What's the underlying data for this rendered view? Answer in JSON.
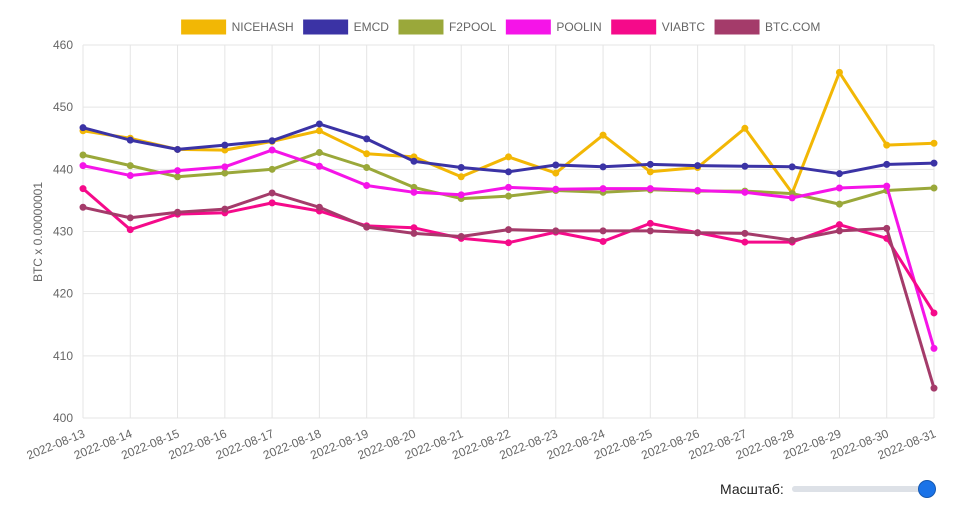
{
  "chart_data": {
    "type": "line",
    "ylabel": "BTC x 0.00000001",
    "xlabel": "",
    "ylim": [
      400,
      460
    ],
    "yticks": [
      400,
      410,
      420,
      430,
      440,
      450,
      460
    ],
    "grid": true,
    "legend_position": "top",
    "x": [
      "2022-08-13",
      "2022-08-14",
      "2022-08-15",
      "2022-08-16",
      "2022-08-17",
      "2022-08-18",
      "2022-08-19",
      "2022-08-20",
      "2022-08-21",
      "2022-08-22",
      "2022-08-23",
      "2022-08-24",
      "2022-08-25",
      "2022-08-26",
      "2022-08-27",
      "2022-08-28",
      "2022-08-29",
      "2022-08-30",
      "2022-08-31"
    ],
    "series": [
      {
        "name": "NICEHASH",
        "color": "#f2b705",
        "values": [
          446.2,
          445.0,
          443.2,
          443.1,
          444.5,
          446.2,
          442.5,
          442.0,
          438.8,
          442.0,
          439.4,
          445.5,
          439.6,
          440.3,
          446.6,
          436.2,
          455.6,
          443.9,
          444.2
        ]
      },
      {
        "name": "EMCD",
        "color": "#3b33a5",
        "values": [
          446.7,
          444.7,
          443.2,
          443.9,
          444.6,
          447.3,
          444.9,
          441.3,
          440.3,
          439.6,
          440.7,
          440.4,
          440.8,
          440.6,
          440.5,
          440.4,
          439.3,
          440.8,
          441.0
        ]
      },
      {
        "name": "F2POOL",
        "color": "#9aa83a",
        "values": [
          442.3,
          440.6,
          438.8,
          439.4,
          440.0,
          442.7,
          440.3,
          437.1,
          435.3,
          435.7,
          436.6,
          436.3,
          436.7,
          436.5,
          436.5,
          436.1,
          434.4,
          436.6,
          437.0
        ]
      },
      {
        "name": "POOLIN",
        "color": "#f514e8",
        "values": [
          440.6,
          439.0,
          439.8,
          440.4,
          443.1,
          440.5,
          437.4,
          436.3,
          435.9,
          437.1,
          436.8,
          436.9,
          436.9,
          436.6,
          436.3,
          435.4,
          437.0,
          437.3,
          411.2
        ]
      },
      {
        "name": "VIABTC",
        "color": "#f50a8a",
        "values": [
          436.9,
          430.3,
          432.8,
          433.0,
          434.6,
          433.3,
          430.9,
          430.6,
          428.9,
          428.2,
          429.9,
          428.4,
          431.3,
          429.8,
          428.3,
          428.3,
          431.1,
          428.9,
          416.9
        ]
      },
      {
        "name": "BTC.COM",
        "color": "#a43b6a",
        "values": [
          433.9,
          432.2,
          433.1,
          433.6,
          436.2,
          433.9,
          430.7,
          429.7,
          429.2,
          430.3,
          430.1,
          430.1,
          430.1,
          429.8,
          429.7,
          428.6,
          430.1,
          430.5,
          404.8
        ]
      }
    ]
  },
  "zoom": {
    "label": "Масштаб:",
    "value": 1.0
  }
}
